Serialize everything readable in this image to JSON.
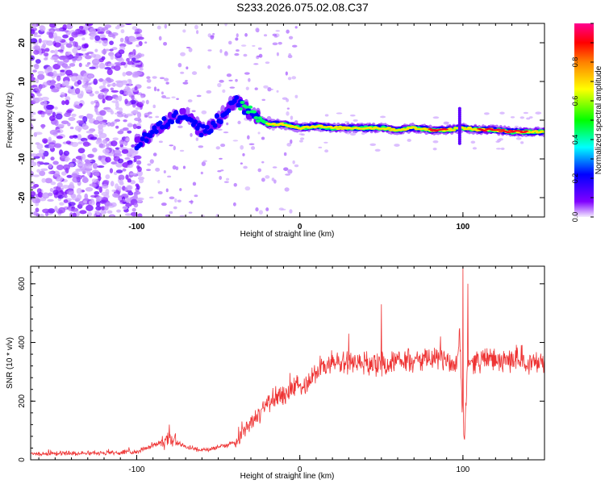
{
  "title": "S233.2026.075.02.08.C37",
  "colors": {
    "snr_line": "#ee3333",
    "axis": "#000000",
    "background": "#ffffff"
  },
  "chart_data": [
    {
      "type": "heatmap",
      "name": "spectrogram",
      "xlabel": "Height of straight line (km)",
      "ylabel": "Frequency (Hz)",
      "xlim": [
        -165,
        150
      ],
      "ylim": [
        -25,
        25
      ],
      "xticks": [
        -100,
        0,
        100
      ],
      "xtick_labels": [
        "-100",
        "0",
        "100"
      ],
      "yticks": [
        -20,
        -10,
        0,
        10,
        20
      ],
      "ytick_labels": [
        "-20",
        "-10",
        "0",
        "10",
        "20"
      ],
      "colorbar": {
        "label": "Normalized spectral amplitude",
        "range": [
          0,
          1
        ],
        "ticks": [
          0.0,
          0.2,
          0.4,
          0.6,
          0.8
        ],
        "tick_labels": [
          "0.0",
          "0.2",
          "0.4",
          "0.6",
          "0.8"
        ],
        "colormap": [
          "#e8d8ff",
          "#7700ff",
          "#0000ff",
          "#00ffff",
          "#00ff00",
          "#ffff00",
          "#ff8800",
          "#ff0000",
          "#ff00aa"
        ]
      },
      "trace": [
        {
          "x": -100,
          "freq": -6,
          "amp": 0.3
        },
        {
          "x": -90,
          "freq": -3,
          "amp": 0.35
        },
        {
          "x": -80,
          "freq": 0,
          "amp": 0.3
        },
        {
          "x": -70,
          "freq": 2,
          "amp": 0.3
        },
        {
          "x": -60,
          "freq": -3,
          "amp": 0.3
        },
        {
          "x": -50,
          "freq": 0,
          "amp": 0.35
        },
        {
          "x": -40,
          "freq": 5,
          "amp": 0.35
        },
        {
          "x": -30,
          "freq": 2,
          "amp": 0.5
        },
        {
          "x": -20,
          "freq": -1,
          "amp": 0.6
        },
        {
          "x": -10,
          "freq": -1,
          "amp": 0.6
        },
        {
          "x": 0,
          "freq": -2,
          "amp": 0.75
        },
        {
          "x": 10,
          "freq": -1.5,
          "amp": 0.8
        },
        {
          "x": 20,
          "freq": -2,
          "amp": 0.8
        },
        {
          "x": 30,
          "freq": -2,
          "amp": 0.8
        },
        {
          "x": 40,
          "freq": -2,
          "amp": 0.8
        },
        {
          "x": 50,
          "freq": -2,
          "amp": 0.8
        },
        {
          "x": 60,
          "freq": -2.5,
          "amp": 0.8
        },
        {
          "x": 70,
          "freq": -2,
          "amp": 0.8
        },
        {
          "x": 80,
          "freq": -2.5,
          "amp": 0.85
        },
        {
          "x": 90,
          "freq": -2.5,
          "amp": 0.85
        },
        {
          "x": 100,
          "freq": -2,
          "amp": 0.6
        },
        {
          "x": 110,
          "freq": -2.5,
          "amp": 0.85
        },
        {
          "x": 120,
          "freq": -2.5,
          "amp": 0.85
        },
        {
          "x": 130,
          "freq": -3,
          "amp": 0.85
        },
        {
          "x": 140,
          "freq": -3,
          "amp": 0.85
        },
        {
          "x": 150,
          "freq": -3,
          "amp": 0.8
        }
      ]
    },
    {
      "type": "line",
      "name": "snr",
      "xlabel": "Height of straight line (km)",
      "ylabel": "SNR (10 * v/v)",
      "xlim": [
        -165,
        150
      ],
      "ylim": [
        0,
        660
      ],
      "xticks": [
        -100,
        0,
        100
      ],
      "xtick_labels": [
        "-100",
        "0",
        "100"
      ],
      "yticks": [
        0,
        200,
        400,
        600
      ],
      "ytick_labels": [
        "0",
        "200",
        "400",
        "600"
      ],
      "series": [
        {
          "name": "SNR",
          "x": [
            -165,
            -150,
            -140,
            -130,
            -120,
            -110,
            -100,
            -95,
            -90,
            -85,
            -80,
            -75,
            -70,
            -65,
            -60,
            -55,
            -50,
            -45,
            -40,
            -35,
            -30,
            -25,
            -20,
            -15,
            -10,
            -5,
            0,
            5,
            10,
            15,
            20,
            25,
            30,
            35,
            40,
            45,
            50,
            55,
            60,
            65,
            70,
            75,
            80,
            85,
            90,
            95,
            97,
            98,
            99,
            100,
            101,
            102,
            103,
            104,
            105,
            110,
            115,
            120,
            125,
            130,
            135,
            140,
            145,
            150
          ],
          "values": [
            20,
            22,
            22,
            24,
            24,
            25,
            28,
            38,
            48,
            60,
            70,
            58,
            45,
            38,
            32,
            35,
            45,
            50,
            60,
            100,
            130,
            150,
            190,
            210,
            220,
            240,
            250,
            270,
            300,
            320,
            330,
            330,
            330,
            335,
            330,
            325,
            330,
            330,
            332,
            335,
            335,
            340,
            340,
            345,
            340,
            320,
            360,
            450,
            250,
            120,
            80,
            200,
            350,
            340,
            330,
            340,
            345,
            340,
            330,
            345,
            340,
            335,
            330,
            340
          ],
          "spikes": [
            {
              "x": -80,
              "value": 120
            },
            {
              "x": 30,
              "value": 430
            },
            {
              "x": 50,
              "value": 530
            },
            {
              "x": 100,
              "value": 660
            },
            {
              "x": 103,
              "value": 600
            }
          ]
        }
      ]
    }
  ]
}
